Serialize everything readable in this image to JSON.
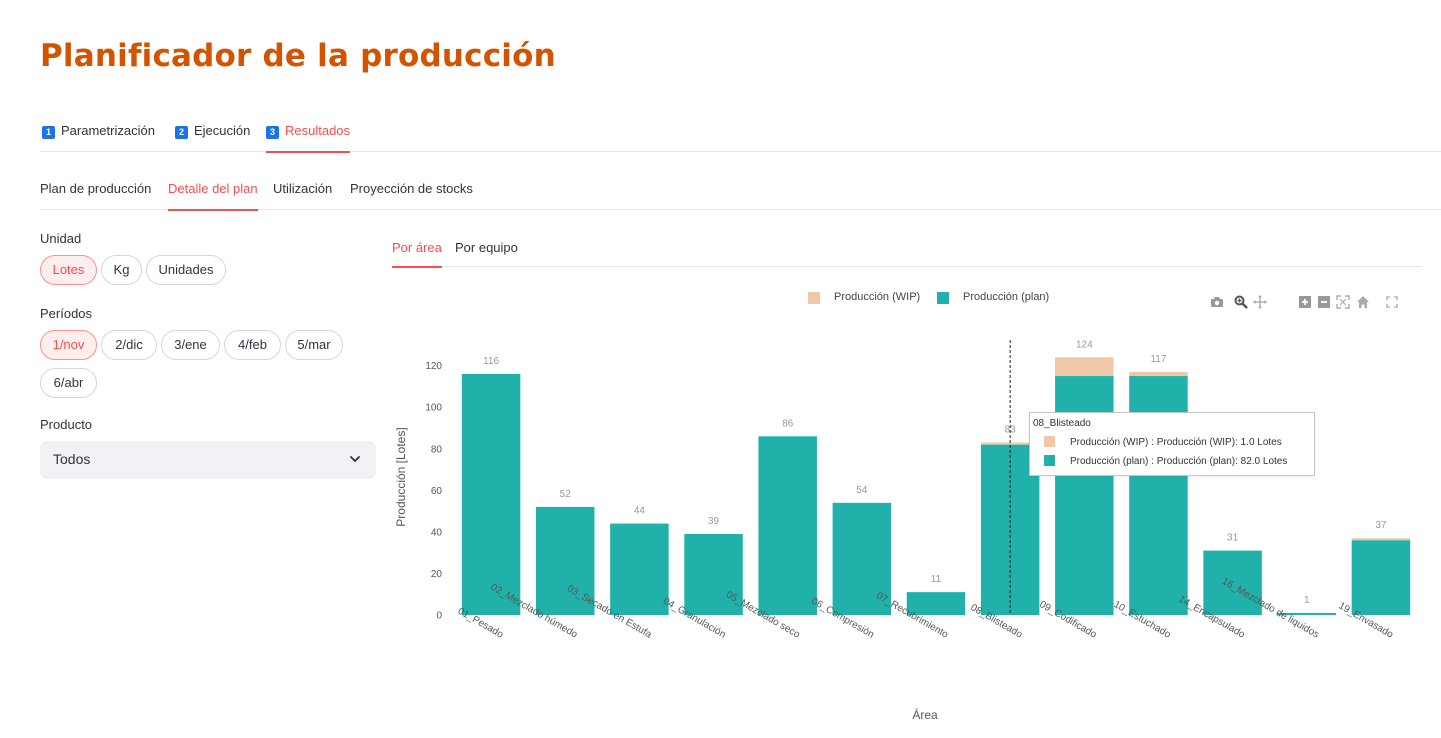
{
  "page": {
    "title": "Planificador de la producción"
  },
  "main_tabs": [
    {
      "num": "1",
      "label": "Parametrización",
      "active": false
    },
    {
      "num": "2",
      "label": "Ejecución",
      "active": false
    },
    {
      "num": "3",
      "label": "Resultados",
      "active": true
    }
  ],
  "sub_tabs": [
    {
      "label": "Plan de producción",
      "active": false
    },
    {
      "label": "Detalle del plan",
      "active": true
    },
    {
      "label": "Utilización",
      "active": false
    },
    {
      "label": "Proyección de stocks",
      "active": false
    }
  ],
  "sidebar": {
    "unidad": {
      "label": "Unidad",
      "options": [
        "Lotes",
        "Kg",
        "Unidades"
      ],
      "selected": "Lotes"
    },
    "periodos": {
      "label": "Períodos",
      "options": [
        "1/nov",
        "2/dic",
        "3/ene",
        "4/feb",
        "5/mar",
        "6/abr"
      ],
      "selected": "1/nov"
    },
    "producto": {
      "label": "Producto",
      "value": "Todos"
    }
  },
  "chart_tabs": [
    {
      "label": "Por área",
      "active": true
    },
    {
      "label": "Por equipo",
      "active": false
    }
  ],
  "colors": {
    "accent": "#ff4b4b",
    "title": "#d35400",
    "wip": "#f0c8a8",
    "plan": "#20b2aa",
    "tab_number": "#1a73e8"
  },
  "toolbar_icons": [
    "camera-icon",
    "zoom-icon",
    "pan-icon",
    "zoom-in-icon",
    "zoom-out-icon",
    "autoscale-icon",
    "reset-axes-icon",
    "fullscreen-icon"
  ],
  "chart_data": {
    "type": "bar",
    "stacked": true,
    "xlabel": "Área",
    "ylabel": "Producción [Lotes]",
    "ylim": [
      0,
      130
    ],
    "yticks": [
      0,
      20,
      40,
      60,
      80,
      100,
      120
    ],
    "grid": false,
    "legend_position": "top",
    "categories": [
      "01_Pesado",
      "02_Mezclado húmedo",
      "03_Secado en Estufa",
      "04_Granulación",
      "05_Mezclado seco",
      "06_Compresión",
      "07_Recubrimiento",
      "08_Blisteado",
      "09_Codificado",
      "10_Estuchado",
      "14_Encapsulado",
      "16_Mezclado de liquidos",
      "19_Envasado"
    ],
    "series": [
      {
        "name": "Producción (plan)",
        "values": [
          116,
          52,
          44,
          39,
          86,
          54,
          11,
          82,
          115,
          115,
          31,
          1,
          36
        ]
      },
      {
        "name": "Producción (WIP)",
        "values": [
          0,
          0,
          0,
          0,
          0,
          0,
          0,
          1,
          9,
          2,
          0,
          0,
          1
        ]
      }
    ],
    "totals": [
      "116",
      "52",
      "44",
      "39",
      "86",
      "54",
      "11",
      "83",
      "124",
      "117",
      "31",
      "1",
      "37"
    ],
    "hover_category": "08_Blisteado"
  },
  "tooltip": {
    "title": "08_Blisteado",
    "rows": [
      "Producción (WIP) : Producción (WIP): 1.0 Lotes",
      "Producción (plan) : Producción (plan): 82.0 Lotes"
    ]
  }
}
